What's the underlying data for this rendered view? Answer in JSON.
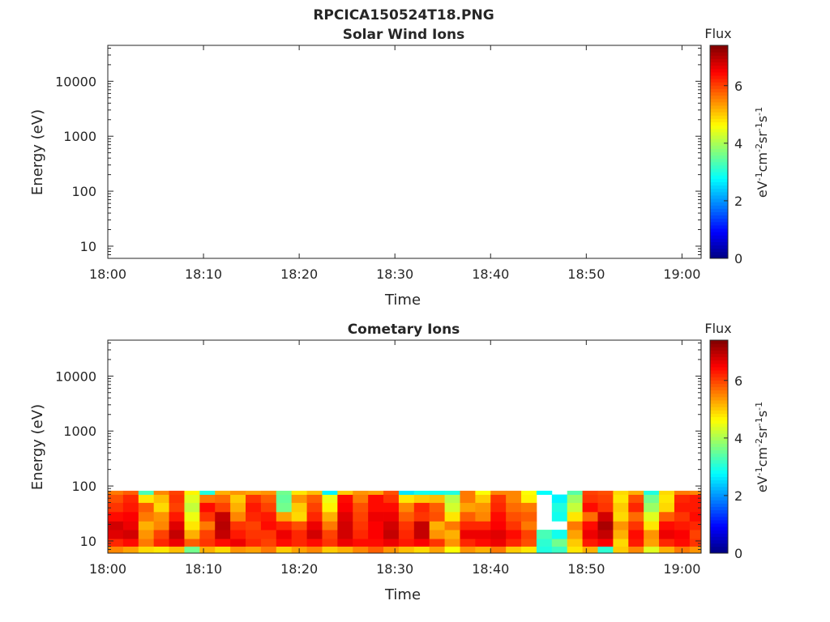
{
  "figure_title": "RPCICA150524T18.PNG",
  "colorbar_unit_symbols": [
    "eV",
    "-1",
    "cm",
    "-2",
    "sr",
    "-1",
    "s",
    "-1"
  ],
  "chart_data": [
    {
      "type": "heatmap",
      "title": "Solar Wind Ions",
      "xlabel": "Time",
      "ylabel": "Energy (eV)",
      "x_ticks": [
        "18:00",
        "18:10",
        "18:20",
        "18:30",
        "18:40",
        "18:50",
        "19:00"
      ],
      "x_range_minutes": [
        0,
        62
      ],
      "y_scale": "log",
      "y_ticks": [
        "10",
        "100",
        "1000",
        "10000"
      ],
      "y_range": [
        6,
        45000
      ],
      "colorbar": {
        "label": "Flux",
        "ticks": [
          "0",
          "2",
          "4",
          "6"
        ],
        "range": [
          0,
          7.4
        ],
        "colormap": "jet"
      },
      "energy_bands": [],
      "flux": []
    },
    {
      "type": "heatmap",
      "title": "Cometary Ions",
      "xlabel": "Time",
      "ylabel": "Energy (eV)",
      "x_ticks": [
        "18:00",
        "18:10",
        "18:20",
        "18:30",
        "18:40",
        "18:50",
        "19:00"
      ],
      "x_range_minutes": [
        0,
        62
      ],
      "y_scale": "log",
      "y_ticks": [
        "10",
        "100",
        "1000",
        "10000"
      ],
      "y_range": [
        6,
        45000
      ],
      "colorbar": {
        "label": "Flux",
        "ticks": [
          "0",
          "2",
          "4",
          "6"
        ],
        "range": [
          0,
          7.4
        ],
        "colormap": "jet"
      },
      "energy_bands": [
        [
          6,
          8
        ],
        [
          8,
          11
        ],
        [
          11,
          16
        ],
        [
          16,
          23
        ],
        [
          23,
          34
        ],
        [
          34,
          50
        ],
        [
          50,
          70
        ],
        [
          70,
          82
        ]
      ],
      "time_minutes": [
        0,
        1.6,
        3.2,
        4.8,
        6.4,
        8.0,
        9.6,
        11.2,
        12.8,
        14.4,
        16.0,
        17.6,
        19.2,
        20.8,
        22.4,
        24.0,
        25.6,
        27.2,
        28.8,
        30.4,
        32.0,
        33.6,
        35.2,
        36.8,
        38.4,
        40.0,
        41.6,
        43.2,
        44.8,
        46.4,
        48.0,
        49.6,
        51.2,
        52.8,
        54.4,
        56.0,
        57.6,
        59.2,
        60.8,
        62.0
      ],
      "flux": [
        [
          5.5,
          6.2,
          6.7,
          6.8,
          6.4,
          6.1,
          5.9,
          5.6
        ],
        [
          5.3,
          6.4,
          6.8,
          6.6,
          6.5,
          6.3,
          6.2,
          5.8
        ],
        [
          4.9,
          5.6,
          5.4,
          5.2,
          5.6,
          5.8,
          4.8,
          3.3
        ],
        [
          4.8,
          6.2,
          6.0,
          5.5,
          5.4,
          4.9,
          5.1,
          5.5
        ],
        [
          5.1,
          6.6,
          6.9,
          6.7,
          6.3,
          6.0,
          6.1,
          6.0
        ],
        [
          3.6,
          5.8,
          5.2,
          4.8,
          4.5,
          4.2,
          4.4,
          4.7
        ],
        [
          5.2,
          6.1,
          6.0,
          5.6,
          6.1,
          6.4,
          5.6,
          3.0
        ],
        [
          4.9,
          6.4,
          6.9,
          7.0,
          6.9,
          6.0,
          5.7,
          5.2
        ],
        [
          5.4,
          6.6,
          6.3,
          6.1,
          5.5,
          5.2,
          5.0,
          5.4
        ],
        [
          5.3,
          6.2,
          6.1,
          6.0,
          6.2,
          6.3,
          6.1,
          5.3
        ],
        [
          5.6,
          6.0,
          6.1,
          6.4,
          6.3,
          6.0,
          5.8,
          5.4
        ],
        [
          5.0,
          6.4,
          6.6,
          6.2,
          5.3,
          3.6,
          3.5,
          3.6
        ],
        [
          5.3,
          6.2,
          6.2,
          5.9,
          4.9,
          5.0,
          5.4,
          4.8
        ],
        [
          5.5,
          6.4,
          6.8,
          6.6,
          6.2,
          6.0,
          5.8,
          5.1
        ],
        [
          5.0,
          6.1,
          6.0,
          5.6,
          5.2,
          4.7,
          4.5,
          2.7
        ],
        [
          5.2,
          6.6,
          6.8,
          6.8,
          6.7,
          6.5,
          6.4,
          5.0
        ],
        [
          5.5,
          6.4,
          6.2,
          6.1,
          6.0,
          5.9,
          5.6,
          5.4
        ],
        [
          5.8,
          6.4,
          6.5,
          6.5,
          6.6,
          6.4,
          6.4,
          5.3
        ],
        [
          5.4,
          6.6,
          6.9,
          6.8,
          6.6,
          6.4,
          6.1,
          5.9
        ],
        [
          5.1,
          6.3,
          6.2,
          6.1,
          5.8,
          5.5,
          4.8,
          2.6
        ],
        [
          4.9,
          6.5,
          6.9,
          6.9,
          6.1,
          6.2,
          5.0,
          2.9
        ],
        [
          5.3,
          6.1,
          5.4,
          5.2,
          5.9,
          5.8,
          5.1,
          2.9
        ],
        [
          4.6,
          5.4,
          5.2,
          5.6,
          4.8,
          4.3,
          4.1,
          3.0
        ],
        [
          5.4,
          6.2,
          6.6,
          6.2,
          5.8,
          5.3,
          5.6,
          5.6
        ],
        [
          5.2,
          6.4,
          6.6,
          6.2,
          5.5,
          5.4,
          5.0,
          4.6
        ],
        [
          5.6,
          6.6,
          6.7,
          6.5,
          6.4,
          6.2,
          6.1,
          5.5
        ],
        [
          5.0,
          6.2,
          6.4,
          6.1,
          5.9,
          5.7,
          5.5,
          5.5
        ],
        [
          4.8,
          5.9,
          6.0,
          5.6,
          5.8,
          5.6,
          4.7,
          4.6
        ],
        [
          3.0,
          3.1,
          3.3,
          null,
          null,
          null,
          null,
          2.8
        ],
        [
          3.2,
          3.6,
          2.9,
          null,
          2.9,
          3.0,
          2.7,
          null
        ],
        [
          4.8,
          5.0,
          5.3,
          5.6,
          4.8,
          4.2,
          3.9,
          3.4
        ],
        [
          5.2,
          6.3,
          6.6,
          6.4,
          5.7,
          6.4,
          6.1,
          6.0
        ],
        [
          3.1,
          6.5,
          6.9,
          7.1,
          6.8,
          6.1,
          6.0,
          5.9
        ],
        [
          5.0,
          4.9,
          5.2,
          5.4,
          4.9,
          5.0,
          4.8,
          4.9
        ],
        [
          5.5,
          6.3,
          6.4,
          6.1,
          5.7,
          6.2,
          5.9,
          5.2
        ],
        [
          4.4,
          5.3,
          5.4,
          4.8,
          4.4,
          3.9,
          3.6,
          3.0
        ],
        [
          5.2,
          6.2,
          6.6,
          6.4,
          5.8,
          4.9,
          4.8,
          4.9
        ],
        [
          5.6,
          6.4,
          6.5,
          6.3,
          6.1,
          6.3,
          6.2,
          5.6
        ],
        [
          5.4,
          6.1,
          6.0,
          6.2,
          6.4,
          6.3,
          6.3,
          5.5
        ]
      ]
    }
  ]
}
